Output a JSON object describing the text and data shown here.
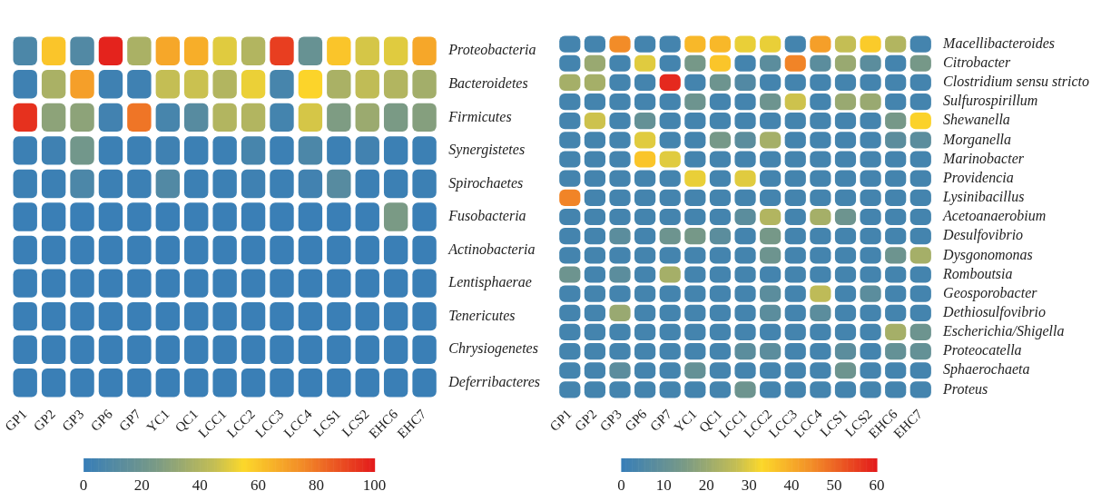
{
  "chart_data": [
    {
      "type": "heatmap",
      "categories": [
        "GP1",
        "GP2",
        "GP3",
        "GP6",
        "GP7",
        "YC1",
        "QC1",
        "LCC1",
        "LCC2",
        "LCC3",
        "LCC4",
        "LCS1",
        "LCS2",
        "EHC6",
        "EHC7"
      ],
      "y_categories": [
        "Proteobacteria",
        "Bacteroidetes",
        "Firmicutes",
        "Synergistetes",
        "Spirochaetes",
        "Fusobacteria",
        "Actinobacteria",
        "Lentisphaerae",
        "Tenericutes",
        "Chrysiogenetes",
        "Deferribacteres"
      ],
      "cells": [
        [
          8,
          60,
          10,
          98,
          38,
          68,
          66,
          50,
          40,
          92,
          18,
          60,
          48,
          50,
          68
        ],
        [
          3,
          38,
          70,
          3,
          3,
          45,
          46,
          40,
          52,
          6,
          56,
          38,
          44,
          40,
          36
        ],
        [
          95,
          30,
          30,
          4,
          80,
          6,
          12,
          40,
          40,
          5,
          48,
          26,
          34,
          25,
          28
        ],
        [
          2,
          3,
          22,
          2,
          2,
          3,
          2,
          2,
          6,
          2,
          8,
          2,
          4,
          2,
          2
        ],
        [
          2,
          2,
          8,
          2,
          2,
          10,
          2,
          2,
          3,
          2,
          4,
          12,
          2,
          2,
          2
        ],
        [
          1,
          1,
          1,
          1,
          1,
          1,
          1,
          1,
          1,
          1,
          1,
          1,
          1,
          25,
          1
        ],
        [
          1,
          1,
          1,
          1,
          1,
          1,
          1,
          1,
          1,
          1,
          1,
          1,
          1,
          1,
          1
        ],
        [
          1,
          1,
          1,
          1,
          1,
          1,
          1,
          1,
          1,
          1,
          1,
          1,
          1,
          1,
          1
        ],
        [
          1,
          1,
          1,
          1,
          1,
          1,
          1,
          1,
          1,
          1,
          1,
          1,
          1,
          1,
          1
        ],
        [
          1,
          1,
          1,
          1,
          1,
          1,
          1,
          1,
          1,
          1,
          1,
          1,
          1,
          1,
          1
        ],
        [
          1,
          1,
          1,
          1,
          1,
          1,
          1,
          1,
          1,
          1,
          1,
          1,
          1,
          1,
          1
        ]
      ],
      "clim": [
        0,
        100
      ],
      "cticks": [
        0,
        20,
        40,
        60,
        80,
        100
      ]
    },
    {
      "type": "heatmap",
      "categories": [
        "GP1",
        "GP2",
        "GP3",
        "GP6",
        "GP7",
        "YC1",
        "QC1",
        "LCC1",
        "LCC2",
        "LCC3",
        "LCC4",
        "LCS1",
        "LCS2",
        "EHC6",
        "EHC7"
      ],
      "y_categories": [
        "Macellibacteroides",
        "Citrobacter",
        "Clostridium sensu stricto",
        "Sulfurospirillum",
        "Shewanella",
        "Morganella",
        "Marinobacter",
        "Providencia",
        "Lysinibacillus",
        "Acetoanaerobium",
        "Desulfovibrio",
        "Dysgonomonas",
        "Romboutsia",
        "Geosporobacter",
        "Dethiosulfovibrio",
        "Escherichia/Shigella",
        "Proteocatella",
        "Sphaerochaeta",
        "Proteus"
      ],
      "cells": [
        [
          3,
          3,
          45,
          3,
          3,
          38,
          38,
          31,
          31,
          3,
          42,
          27,
          35,
          24,
          3
        ],
        [
          3,
          20,
          3,
          30,
          3,
          14,
          36,
          3,
          8,
          46,
          8,
          20,
          8,
          3,
          14
        ],
        [
          22,
          22,
          3,
          3,
          58,
          3,
          12,
          6,
          3,
          3,
          3,
          3,
          3,
          3,
          3
        ],
        [
          3,
          3,
          3,
          3,
          3,
          12,
          3,
          3,
          12,
          28,
          3,
          20,
          20,
          3,
          3
        ],
        [
          3,
          28,
          3,
          10,
          3,
          3,
          3,
          3,
          3,
          3,
          3,
          3,
          3,
          14,
          34
        ],
        [
          3,
          3,
          3,
          30,
          3,
          3,
          14,
          8,
          22,
          3,
          3,
          3,
          3,
          8,
          8
        ],
        [
          3,
          3,
          3,
          36,
          30,
          3,
          3,
          3,
          3,
          3,
          3,
          3,
          3,
          3,
          3
        ],
        [
          3,
          3,
          3,
          3,
          3,
          31,
          3,
          30,
          3,
          3,
          3,
          3,
          3,
          3,
          3
        ],
        [
          46,
          3,
          3,
          3,
          3,
          3,
          3,
          3,
          3,
          3,
          3,
          3,
          3,
          3,
          3
        ],
        [
          3,
          3,
          3,
          3,
          3,
          3,
          3,
          8,
          24,
          3,
          22,
          12,
          3,
          3,
          3
        ],
        [
          3,
          3,
          8,
          3,
          12,
          14,
          8,
          3,
          14,
          3,
          3,
          3,
          3,
          3,
          3
        ],
        [
          3,
          3,
          3,
          3,
          3,
          3,
          3,
          3,
          12,
          3,
          3,
          3,
          3,
          12,
          22
        ],
        [
          12,
          3,
          8,
          3,
          22,
          3,
          3,
          3,
          3,
          3,
          3,
          3,
          3,
          3,
          3
        ],
        [
          3,
          3,
          3,
          3,
          3,
          3,
          3,
          3,
          8,
          3,
          26,
          3,
          8,
          3,
          3
        ],
        [
          3,
          3,
          20,
          3,
          3,
          3,
          3,
          3,
          8,
          3,
          8,
          3,
          3,
          3,
          3
        ],
        [
          3,
          3,
          3,
          3,
          3,
          3,
          3,
          3,
          3,
          3,
          3,
          3,
          3,
          22,
          12
        ],
        [
          3,
          3,
          3,
          3,
          3,
          3,
          3,
          8,
          8,
          3,
          3,
          8,
          3,
          10,
          10
        ],
        [
          3,
          3,
          8,
          3,
          3,
          10,
          3,
          3,
          3,
          3,
          3,
          12,
          3,
          3,
          3
        ],
        [
          3,
          3,
          3,
          3,
          3,
          3,
          3,
          12,
          3,
          3,
          3,
          3,
          3,
          3,
          3
        ]
      ],
      "clim": [
        0,
        60
      ],
      "cticks": [
        0,
        10,
        20,
        30,
        40,
        50,
        60
      ]
    }
  ]
}
